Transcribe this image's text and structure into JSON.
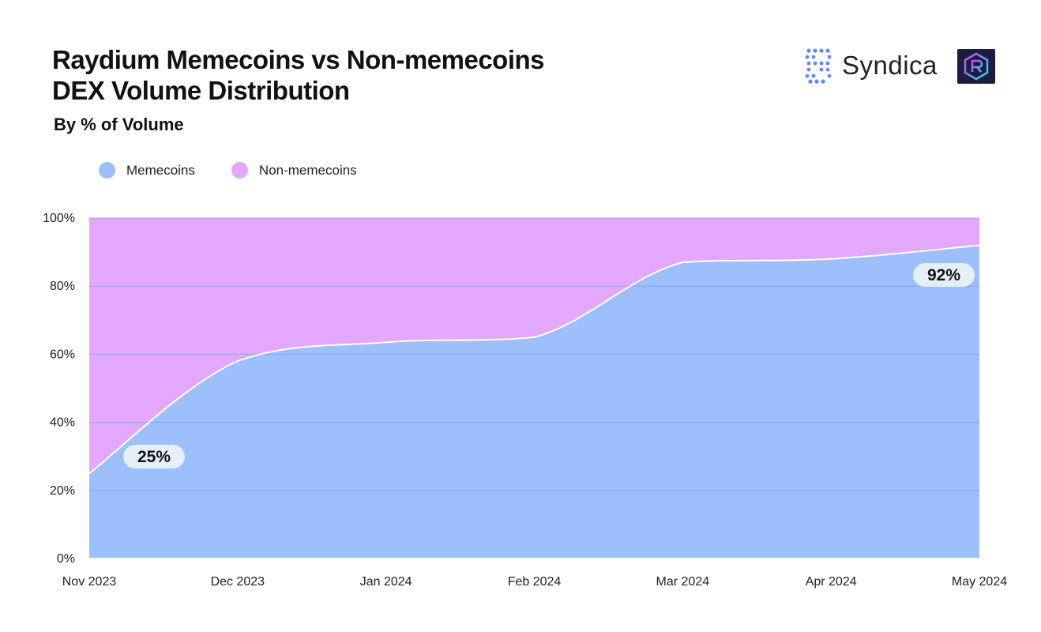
{
  "title_line1": "Raydium Memecoins vs Non-memecoins",
  "title_line2": "DEX Volume Distribution",
  "subtitle": "By % of Volume",
  "brand": {
    "name": "Syndica",
    "logo_icon": "syndica-dots-icon",
    "raydium_icon": "raydium-r-icon"
  },
  "colors": {
    "memecoins": "#9dbffb",
    "non_memecoins": "#e3a8fb",
    "grid": "#7d9cd8"
  },
  "chart_data": {
    "type": "area",
    "stacked": true,
    "percent": true,
    "x": [
      "Nov 2023",
      "Dec 2023",
      "Jan 2024",
      "Feb 2024",
      "Mar 2024",
      "Apr 2024",
      "May 2024"
    ],
    "series": [
      {
        "name": "Memecoins",
        "values": [
          25,
          58,
          63.5,
          65,
          87,
          88,
          92
        ]
      },
      {
        "name": "Non-memecoins",
        "values": [
          75,
          42,
          36.5,
          35,
          13,
          12,
          8
        ]
      }
    ],
    "ylim": [
      0,
      100
    ],
    "yticks": [
      "0%",
      "20%",
      "40%",
      "60%",
      "80%",
      "100%"
    ],
    "legend": "top-left",
    "grid": true,
    "annotations": [
      {
        "text": "25%",
        "x": "Nov 2023"
      },
      {
        "text": "92%",
        "x": "May 2024"
      }
    ]
  }
}
